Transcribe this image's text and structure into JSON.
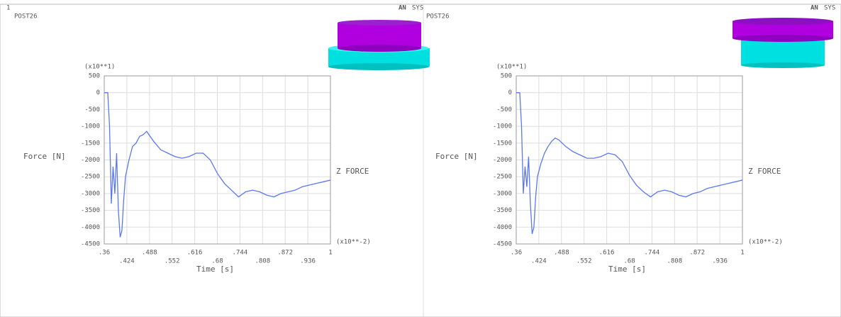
{
  "chart_data": [
    {
      "type": "line",
      "title": "POST26",
      "panel_number": "1",
      "logo_left": "AN",
      "logo_right": "SYS",
      "ylabel": "Force [N]",
      "xlabel": "Time [s]",
      "y_multiplier": "(x10**1)",
      "x_multiplier": "(x10**-2)",
      "xlim": [
        0.36,
        1
      ],
      "ylim": [
        -4500,
        500
      ],
      "xticks": [
        {
          "value": 0.36,
          "label": ".36"
        },
        {
          "value": 0.424,
          "label": ".424"
        },
        {
          "value": 0.488,
          "label": ".488"
        },
        {
          "value": 0.552,
          "label": ".552"
        },
        {
          "value": 0.616,
          "label": ".616"
        },
        {
          "value": 0.68,
          "label": ".68"
        },
        {
          "value": 0.744,
          "label": ".744"
        },
        {
          "value": 0.808,
          "label": ".808"
        },
        {
          "value": 0.872,
          "label": ".872"
        },
        {
          "value": 0.936,
          "label": ".936"
        },
        1
      ],
      "yticks": [
        500,
        0,
        -500,
        -1000,
        -1500,
        -2000,
        -2500,
        -3000,
        -3500,
        -4000,
        -4500
      ],
      "grid": true,
      "x": [
        0.36,
        0.37,
        0.375,
        0.38,
        0.385,
        0.39,
        0.395,
        0.4,
        0.405,
        0.41,
        0.415,
        0.42,
        0.43,
        0.44,
        0.45,
        0.46,
        0.47,
        0.48,
        0.49,
        0.5,
        0.52,
        0.54,
        0.56,
        0.58,
        0.6,
        0.62,
        0.64,
        0.66,
        0.68,
        0.7,
        0.72,
        0.74,
        0.76,
        0.78,
        0.8,
        0.82,
        0.84,
        0.86,
        0.88,
        0.9,
        0.92,
        0.94,
        0.96,
        0.98,
        1
      ],
      "series": [
        {
          "name": "Z FORCE",
          "color": "#5b78f0",
          "values": [
            0,
            0,
            -1000,
            -3300,
            -2200,
            -3000,
            -1800,
            -3500,
            -4300,
            -4100,
            -3200,
            -2500,
            -2000,
            -1600,
            -1500,
            -1300,
            -1250,
            -1150,
            -1300,
            -1450,
            -1700,
            -1800,
            -1900,
            -1950,
            -1900,
            -1800,
            -1800,
            -2000,
            -2400,
            -2700,
            -2900,
            -3100,
            -2950,
            -2900,
            -2950,
            -3050,
            -3100,
            -3000,
            -2950,
            -2900,
            -2800,
            -2750,
            -2700,
            -2650,
            -2600
          ]
        }
      ]
    },
    {
      "type": "line",
      "title": "POST26",
      "logo_left": "AN",
      "logo_right": "SYS",
      "ylabel": "Force [N]",
      "xlabel": "Time [s]",
      "y_multiplier": "(x10**1)",
      "x_multiplier": "(x10**-2)",
      "xlim": [
        0.36,
        1
      ],
      "ylim": [
        -4500,
        500
      ],
      "xticks": [
        {
          "value": 0.36,
          "label": ".36"
        },
        {
          "value": 0.424,
          "label": ".424"
        },
        {
          "value": 0.488,
          "label": ".488"
        },
        {
          "value": 0.552,
          "label": ".552"
        },
        {
          "value": 0.616,
          "label": ".616"
        },
        {
          "value": 0.68,
          "label": ".68"
        },
        {
          "value": 0.744,
          "label": ".744"
        },
        {
          "value": 0.808,
          "label": ".808"
        },
        {
          "value": 0.872,
          "label": ".872"
        },
        {
          "value": 0.936,
          "label": ".936"
        },
        1
      ],
      "yticks": [
        500,
        0,
        -500,
        -1000,
        -1500,
        -2000,
        -2500,
        -3000,
        -3500,
        -4000,
        -4500
      ],
      "grid": true,
      "x": [
        0.36,
        0.37,
        0.375,
        0.38,
        0.385,
        0.39,
        0.395,
        0.4,
        0.405,
        0.41,
        0.415,
        0.42,
        0.43,
        0.44,
        0.45,
        0.46,
        0.47,
        0.48,
        0.49,
        0.5,
        0.52,
        0.54,
        0.56,
        0.58,
        0.6,
        0.62,
        0.64,
        0.66,
        0.68,
        0.7,
        0.72,
        0.74,
        0.76,
        0.78,
        0.8,
        0.82,
        0.84,
        0.86,
        0.88,
        0.9,
        0.92,
        0.94,
        0.96,
        0.98,
        1
      ],
      "series": [
        {
          "name": "Z FORCE",
          "color": "#5b78f0",
          "values": [
            0,
            0,
            -1000,
            -3000,
            -2200,
            -2800,
            -1900,
            -3300,
            -4200,
            -4000,
            -3100,
            -2500,
            -2100,
            -1800,
            -1600,
            -1450,
            -1350,
            -1400,
            -1500,
            -1600,
            -1750,
            -1850,
            -1950,
            -1950,
            -1900,
            -1800,
            -1850,
            -2050,
            -2450,
            -2750,
            -2950,
            -3100,
            -2950,
            -2900,
            -2950,
            -3050,
            -3100,
            -3000,
            -2950,
            -2850,
            -2800,
            -2750,
            -2700,
            -2650,
            -2600
          ]
        }
      ]
    }
  ]
}
